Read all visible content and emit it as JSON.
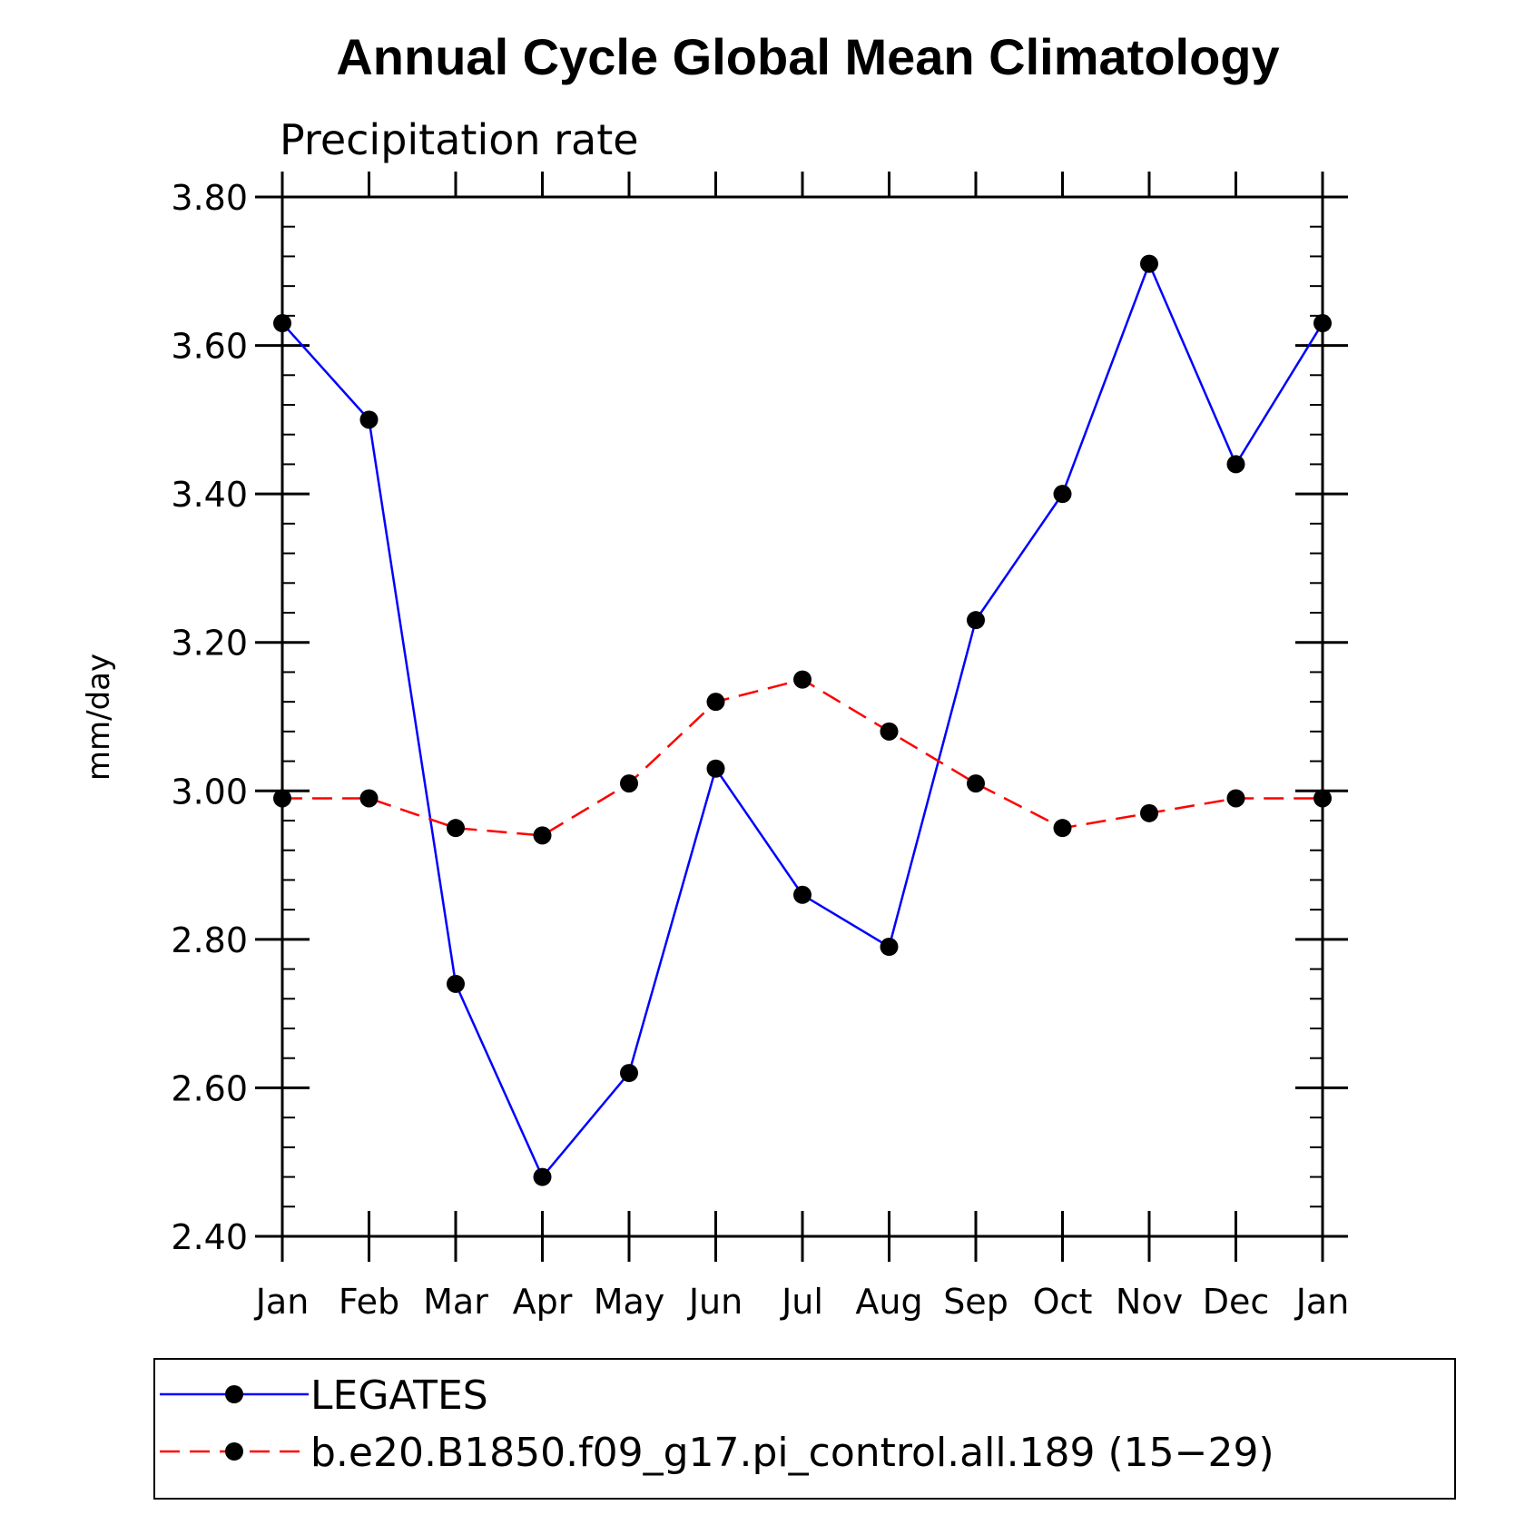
{
  "chart_data": {
    "type": "line",
    "title": "Annual Cycle Global Mean Climatology",
    "subtitle": "Precipitation rate",
    "xlabel": "",
    "ylabel": "mm/day",
    "categories": [
      "Jan",
      "Feb",
      "Mar",
      "Apr",
      "May",
      "Jun",
      "Jul",
      "Aug",
      "Sep",
      "Oct",
      "Nov",
      "Dec",
      "Jan"
    ],
    "ylim": [
      2.4,
      3.8
    ],
    "yticks": [
      "2.40",
      "2.60",
      "2.80",
      "3.00",
      "3.20",
      "3.40",
      "3.60",
      "3.80"
    ],
    "grid": false,
    "legend_position": "bottom",
    "series": [
      {
        "name": "LEGATES",
        "color": "#0000ff",
        "dash": "solid",
        "marker": "filled-circle",
        "values": [
          3.63,
          3.5,
          2.74,
          2.48,
          2.62,
          3.03,
          2.86,
          2.79,
          3.23,
          3.4,
          3.71,
          3.44,
          3.63
        ]
      },
      {
        "name": "b.e20.B1850.f09_g17.pi_control.all.189 (15−29)",
        "color": "#ff0000",
        "dash": "dashed",
        "marker": "filled-circle",
        "values": [
          2.99,
          2.99,
          2.95,
          2.94,
          3.01,
          3.12,
          3.15,
          3.08,
          3.01,
          2.95,
          2.97,
          2.99,
          2.99
        ]
      }
    ]
  }
}
